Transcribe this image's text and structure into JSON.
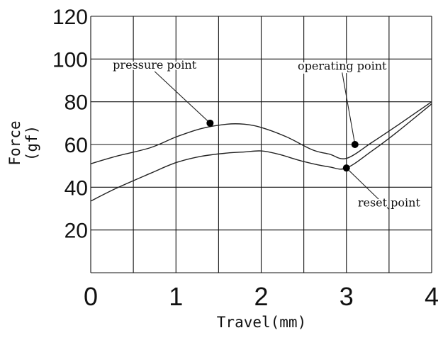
{
  "chart_data": {
    "type": "line",
    "xlabel": "Travel(mm)",
    "ylabel_line1": "Force",
    "ylabel_line2": "(gf)",
    "xlim": [
      0,
      4
    ],
    "ylim": [
      0,
      120
    ],
    "x_ticks": [
      "0",
      "1",
      "2",
      "3",
      "4"
    ],
    "y_ticks": [
      "20",
      "40",
      "60",
      "80",
      "100",
      "120"
    ],
    "grid": true,
    "series": [
      {
        "x": [
          0,
          0.3,
          0.7,
          1.0,
          1.3,
          1.6,
          1.8,
          2.0,
          2.3,
          2.6,
          2.8,
          3.0,
          3.3,
          3.6,
          4.0
        ],
        "y": [
          51,
          54.5,
          58.5,
          63.5,
          67.5,
          69.5,
          69.5,
          68,
          63.5,
          57.5,
          55.5,
          53.5,
          61,
          69,
          80
        ]
      },
      {
        "x": [
          0,
          0.3,
          0.7,
          1.0,
          1.3,
          1.6,
          1.8,
          2.0,
          2.2,
          2.5,
          2.8,
          3.0,
          3.3,
          3.6,
          4.0
        ],
        "y": [
          33.5,
          39.5,
          46.5,
          51.5,
          54.5,
          56,
          56.5,
          57,
          55.5,
          52,
          49.5,
          49,
          57,
          66,
          79
        ]
      }
    ],
    "annotations": [
      {
        "label": "pressure point",
        "point": [
          1.4,
          70
        ],
        "text_at": [
          0.75,
          95.5
        ]
      },
      {
        "label": "operating point",
        "point": [
          3.1,
          60
        ],
        "text_at": [
          2.95,
          95
        ]
      },
      {
        "label": "reset point",
        "point": [
          3.0,
          49
        ],
        "text_at": [
          3.5,
          31
        ]
      }
    ]
  }
}
